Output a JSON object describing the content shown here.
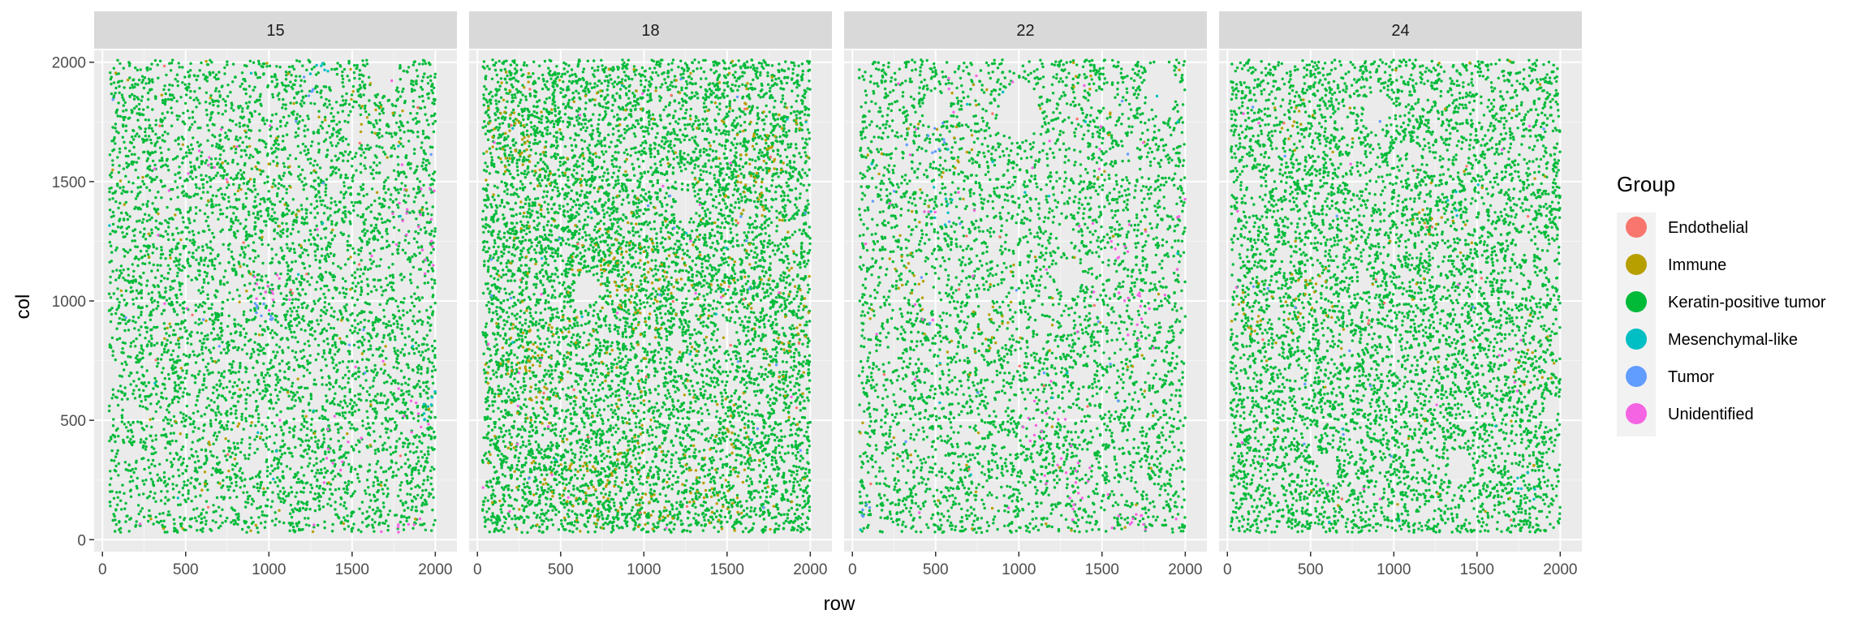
{
  "chart_data": {
    "type": "scatter",
    "xlabel": "row",
    "ylabel": "col",
    "xlim": [
      -50,
      2130
    ],
    "ylim": [
      -50,
      2050
    ],
    "xticks": [
      0,
      500,
      1000,
      1500,
      2000
    ],
    "yticks": [
      0,
      500,
      1000,
      1500,
      2000
    ],
    "grid": true,
    "facets": [
      "15",
      "18",
      "22",
      "24"
    ],
    "legend": {
      "title": "Group",
      "placement": "right",
      "entries": [
        {
          "name": "Endothelial",
          "color": "#F8766D"
        },
        {
          "name": "Immune",
          "color": "#B79F00"
        },
        {
          "name": "Keratin-positive tumor",
          "color": "#00BA38"
        },
        {
          "name": "Mesenchymal-like",
          "color": "#00BFC4"
        },
        {
          "name": "Tumor",
          "color": "#619CFF"
        },
        {
          "name": "Unidentified",
          "color": "#F564E3"
        }
      ]
    },
    "panels": [
      {
        "facet": "15",
        "x_extent": [
          40,
          2000
        ],
        "y_extent": [
          30,
          2010
        ],
        "approx_counts": {
          "Keratin-positive tumor": 5200,
          "Immune": 120,
          "Unidentified": 90,
          "Mesenchymal-like": 30,
          "Tumor": 25,
          "Endothelial": 15
        },
        "clusters": [
          {
            "group": "Unidentified",
            "x": 1950,
            "y": 1250,
            "spread": 60,
            "n": 12
          },
          {
            "group": "Unidentified",
            "x": 1800,
            "y": 1400,
            "spread": 80,
            "n": 10
          },
          {
            "group": "Unidentified",
            "x": 1900,
            "y": 550,
            "spread": 90,
            "n": 14
          },
          {
            "group": "Unidentified",
            "x": 1800,
            "y": 50,
            "spread": 60,
            "n": 8
          },
          {
            "group": "Unidentified",
            "x": 1400,
            "y": 350,
            "spread": 80,
            "n": 8
          },
          {
            "group": "Unidentified",
            "x": 1000,
            "y": 1050,
            "spread": 90,
            "n": 10
          },
          {
            "group": "Unidentified",
            "x": 600,
            "y": 1650,
            "spread": 60,
            "n": 6
          },
          {
            "group": "Immune",
            "x": 1620,
            "y": 1830,
            "spread": 70,
            "n": 10
          },
          {
            "group": "Immune",
            "x": 700,
            "y": 400,
            "spread": 90,
            "n": 10
          },
          {
            "group": "Immune",
            "x": 1100,
            "y": 1450,
            "spread": 100,
            "n": 10
          },
          {
            "group": "Mesenchymal-like",
            "x": 1950,
            "y": 550,
            "spread": 50,
            "n": 10
          },
          {
            "group": "Mesenchymal-like",
            "x": 1310,
            "y": 1960,
            "spread": 40,
            "n": 6
          },
          {
            "group": "Tumor",
            "x": 970,
            "y": 950,
            "spread": 40,
            "n": 10
          },
          {
            "group": "Tumor",
            "x": 1230,
            "y": 1870,
            "spread": 40,
            "n": 6
          }
        ],
        "holes": [
          {
            "x": 1700,
            "y": 1950,
            "r": 90
          },
          {
            "x": 1520,
            "y": 1700,
            "r": 60
          }
        ]
      },
      {
        "facet": "18",
        "x_extent": [
          30,
          2000
        ],
        "y_extent": [
          30,
          2010
        ],
        "approx_counts": {
          "Keratin-positive tumor": 7600,
          "Immune": 600,
          "Unidentified": 25,
          "Mesenchymal-like": 15,
          "Tumor": 20,
          "Endothelial": 20
        },
        "clusters": [
          {
            "group": "Immune",
            "x": 300,
            "y": 700,
            "spread": 120,
            "n": 45
          },
          {
            "group": "Immune",
            "x": 700,
            "y": 250,
            "spread": 140,
            "n": 50
          },
          {
            "group": "Immune",
            "x": 1400,
            "y": 200,
            "spread": 150,
            "n": 55
          },
          {
            "group": "Immune",
            "x": 1700,
            "y": 1600,
            "spread": 120,
            "n": 40
          },
          {
            "group": "Immune",
            "x": 200,
            "y": 1700,
            "spread": 120,
            "n": 35
          },
          {
            "group": "Immune",
            "x": 1000,
            "y": 1050,
            "spread": 130,
            "n": 40
          },
          {
            "group": "Immune",
            "x": 1950,
            "y": 900,
            "spread": 80,
            "n": 25
          }
        ],
        "holes": [
          {
            "x": 650,
            "y": 1050,
            "r": 70
          },
          {
            "x": 1250,
            "y": 1400,
            "r": 60
          },
          {
            "x": 1500,
            "y": 850,
            "r": 55
          }
        ]
      },
      {
        "facet": "22",
        "x_extent": [
          40,
          2000
        ],
        "y_extent": [
          30,
          2010
        ],
        "approx_counts": {
          "Keratin-positive tumor": 4300,
          "Immune": 110,
          "Unidentified": 110,
          "Mesenchymal-like": 25,
          "Tumor": 30,
          "Endothelial": 12
        },
        "clusters": [
          {
            "group": "Unidentified",
            "x": 1100,
            "y": 480,
            "spread": 90,
            "n": 14
          },
          {
            "group": "Unidentified",
            "x": 1350,
            "y": 220,
            "spread": 90,
            "n": 14
          },
          {
            "group": "Unidentified",
            "x": 1720,
            "y": 80,
            "spread": 50,
            "n": 10
          },
          {
            "group": "Unidentified",
            "x": 1700,
            "y": 950,
            "spread": 80,
            "n": 12
          },
          {
            "group": "Unidentified",
            "x": 1980,
            "y": 1350,
            "spread": 40,
            "n": 8
          },
          {
            "group": "Unidentified",
            "x": 1550,
            "y": 1200,
            "spread": 90,
            "n": 10
          },
          {
            "group": "Immune",
            "x": 400,
            "y": 1200,
            "spread": 120,
            "n": 18
          },
          {
            "group": "Immune",
            "x": 900,
            "y": 1000,
            "spread": 110,
            "n": 12
          },
          {
            "group": "Immune",
            "x": 600,
            "y": 1600,
            "spread": 90,
            "n": 10
          },
          {
            "group": "Mesenchymal-like",
            "x": 520,
            "y": 1400,
            "spread": 50,
            "n": 8
          },
          {
            "group": "Tumor",
            "x": 520,
            "y": 1660,
            "spread": 40,
            "n": 8
          },
          {
            "group": "Tumor",
            "x": 80,
            "y": 130,
            "spread": 30,
            "n": 6
          }
        ],
        "holes": [
          {
            "x": 1000,
            "y": 1800,
            "r": 120
          },
          {
            "x": 1300,
            "y": 1100,
            "r": 80
          },
          {
            "x": 500,
            "y": 1800,
            "r": 70
          },
          {
            "x": 1850,
            "y": 1900,
            "r": 100
          }
        ]
      },
      {
        "facet": "24",
        "x_extent": [
          20,
          2000
        ],
        "y_extent": [
          30,
          2010
        ],
        "approx_counts": {
          "Keratin-positive tumor": 6200,
          "Immune": 110,
          "Unidentified": 20,
          "Mesenchymal-like": 15,
          "Tumor": 15,
          "Endothelial": 15
        },
        "clusters": [
          {
            "group": "Immune",
            "x": 500,
            "y": 1050,
            "spread": 100,
            "n": 20
          },
          {
            "group": "Immune",
            "x": 150,
            "y": 950,
            "spread": 80,
            "n": 14
          },
          {
            "group": "Immune",
            "x": 1250,
            "y": 1250,
            "spread": 90,
            "n": 12
          },
          {
            "group": "Immune",
            "x": 420,
            "y": 1750,
            "spread": 60,
            "n": 10
          },
          {
            "group": "Immune",
            "x": 1850,
            "y": 700,
            "spread": 90,
            "n": 10
          },
          {
            "group": "Mesenchymal-like",
            "x": 1770,
            "y": 220,
            "spread": 40,
            "n": 6
          },
          {
            "group": "Mesenchymal-like",
            "x": 1380,
            "y": 1420,
            "spread": 40,
            "n": 5
          },
          {
            "group": "Unidentified",
            "x": 1700,
            "y": 700,
            "spread": 60,
            "n": 6
          }
        ],
        "holes": [
          {
            "x": 900,
            "y": 1800,
            "r": 80
          },
          {
            "x": 1400,
            "y": 300,
            "r": 70
          },
          {
            "x": 600,
            "y": 300,
            "r": 60
          }
        ]
      }
    ]
  }
}
